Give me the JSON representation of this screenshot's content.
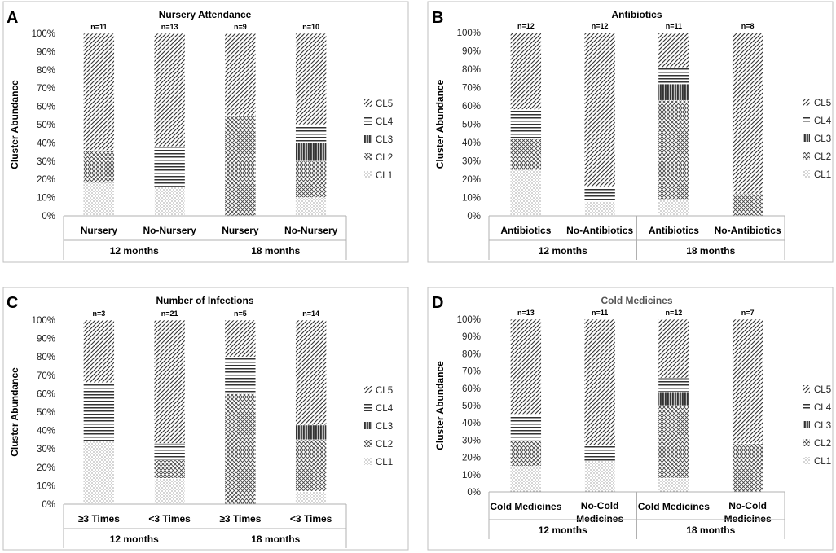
{
  "figure": {
    "legend_labels": [
      "CL5",
      "CL4",
      "CL3",
      "CL2",
      "CL1"
    ]
  },
  "chart_data": [
    {
      "panel": "A",
      "type": "bar",
      "stacked": true,
      "title": "Nursery Attendance",
      "ylabel": "Cluster Abundance",
      "ylim": [
        0,
        100
      ],
      "yticks": [
        "0%",
        "10%",
        "20%",
        "30%",
        "40%",
        "50%",
        "60%",
        "70%",
        "80%",
        "90%",
        "100%"
      ],
      "categories": [
        [
          "Nursery"
        ],
        [
          "No-Nursery"
        ],
        [
          "Nursery"
        ],
        [
          "No-Nursery"
        ]
      ],
      "groups": [
        "12 months",
        "18 months"
      ],
      "n_labels": [
        "n=11",
        "n=13",
        "n=9",
        "n=10"
      ],
      "series": [
        {
          "name": "CL1",
          "values": [
            18,
            16,
            0,
            10
          ]
        },
        {
          "name": "CL2",
          "values": [
            18,
            0,
            55,
            20
          ]
        },
        {
          "name": "CL3",
          "values": [
            0,
            0,
            0,
            10
          ]
        },
        {
          "name": "CL4",
          "values": [
            0,
            22,
            0,
            10
          ]
        },
        {
          "name": "CL5",
          "values": [
            64,
            62,
            45,
            50
          ]
        }
      ]
    },
    {
      "panel": "B",
      "type": "bar",
      "stacked": true,
      "title": "Antibiotics",
      "ylabel": "Cluster Abundance",
      "ylim": [
        0,
        100
      ],
      "yticks": [
        "0%",
        "10%",
        "20%",
        "30%",
        "40%",
        "50%",
        "60%",
        "70%",
        "80%",
        "90%",
        "100%"
      ],
      "categories": [
        [
          "Antibiotics"
        ],
        [
          "No-Antibiotics"
        ],
        [
          "Antibiotics"
        ],
        [
          "No-Antibiotics"
        ]
      ],
      "groups": [
        "12 months",
        "18 months"
      ],
      "n_labels": [
        "n=12",
        "n=12",
        "n=11",
        "n=8"
      ],
      "series": [
        {
          "name": "CL1",
          "values": [
            25,
            8,
            9,
            0
          ]
        },
        {
          "name": "CL2",
          "values": [
            17,
            0,
            54,
            12
          ]
        },
        {
          "name": "CL3",
          "values": [
            0,
            0,
            9,
            0
          ]
        },
        {
          "name": "CL4",
          "values": [
            16,
            8,
            9,
            0
          ]
        },
        {
          "name": "CL5",
          "values": [
            42,
            84,
            19,
            88
          ]
        }
      ]
    },
    {
      "panel": "C",
      "type": "bar",
      "stacked": true,
      "title": "Number of Infections",
      "ylabel": "Cluster Abundance",
      "ylim": [
        0,
        100
      ],
      "yticks": [
        "0%",
        "10%",
        "20%",
        "30%",
        "40%",
        "50%",
        "60%",
        "70%",
        "80%",
        "90%",
        "100%"
      ],
      "categories": [
        [
          "≥3 Times"
        ],
        [
          "<3 Times"
        ],
        [
          "≥3 Times"
        ],
        [
          "<3 Times"
        ]
      ],
      "groups": [
        "12 months",
        "18 months"
      ],
      "n_labels": [
        "n=3",
        "n=21",
        "n=5",
        "n=14"
      ],
      "series": [
        {
          "name": "CL1",
          "values": [
            34,
            14,
            0,
            7
          ]
        },
        {
          "name": "CL2",
          "values": [
            0,
            10,
            60,
            28
          ]
        },
        {
          "name": "CL3",
          "values": [
            0,
            0,
            0,
            8
          ]
        },
        {
          "name": "CL4",
          "values": [
            32,
            9,
            20,
            0
          ]
        },
        {
          "name": "CL5",
          "values": [
            34,
            67,
            20,
            57
          ]
        }
      ]
    },
    {
      "panel": "D",
      "type": "bar",
      "stacked": true,
      "title": "Cold Medicines",
      "ylabel": "Cluster Abundance",
      "ylim": [
        0,
        100
      ],
      "yticks": [
        "0%",
        "10%",
        "20%",
        "30%",
        "40%",
        "50%",
        "60%",
        "70%",
        "80%",
        "90%",
        "100%"
      ],
      "categories": [
        [
          "Cold Medicines"
        ],
        [
          "No-Cold",
          "Medicines"
        ],
        [
          "Cold Medicines"
        ],
        [
          "No-Cold",
          "Medicines"
        ]
      ],
      "groups": [
        "12 months",
        "18 months"
      ],
      "n_labels": [
        "n=13",
        "n=11",
        "n=12",
        "n=7"
      ],
      "series": [
        {
          "name": "CL1",
          "values": [
            15,
            18,
            8,
            0
          ]
        },
        {
          "name": "CL2",
          "values": [
            15,
            0,
            42,
            28
          ]
        },
        {
          "name": "CL3",
          "values": [
            0,
            0,
            8,
            0
          ]
        },
        {
          "name": "CL4",
          "values": [
            15,
            9,
            8,
            0
          ]
        },
        {
          "name": "CL5",
          "values": [
            55,
            73,
            34,
            72
          ]
        }
      ]
    }
  ]
}
